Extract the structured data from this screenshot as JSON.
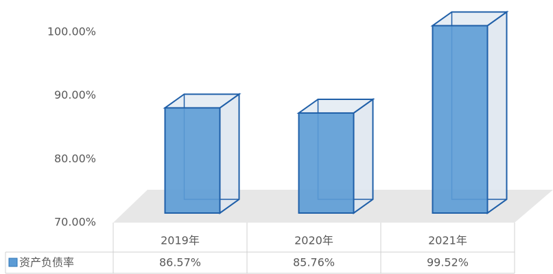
{
  "chart_data": {
    "type": "bar3d",
    "categories": [
      "2019年",
      "2020年",
      "2021年"
    ],
    "series": [
      {
        "name": "资产负债率",
        "color": "#5b9bd5",
        "values": [
          86.57,
          85.76,
          99.52
        ],
        "value_labels": [
          "86.57%",
          "85.76%",
          "99.52%"
        ]
      }
    ],
    "ylim": [
      70,
      100
    ],
    "yticks": [
      {
        "value": 70,
        "label": "70.00%"
      },
      {
        "value": 80,
        "label": "80.00%"
      },
      {
        "value": 90,
        "label": "90.00%"
      },
      {
        "value": 100,
        "label": "100.00%"
      }
    ]
  }
}
